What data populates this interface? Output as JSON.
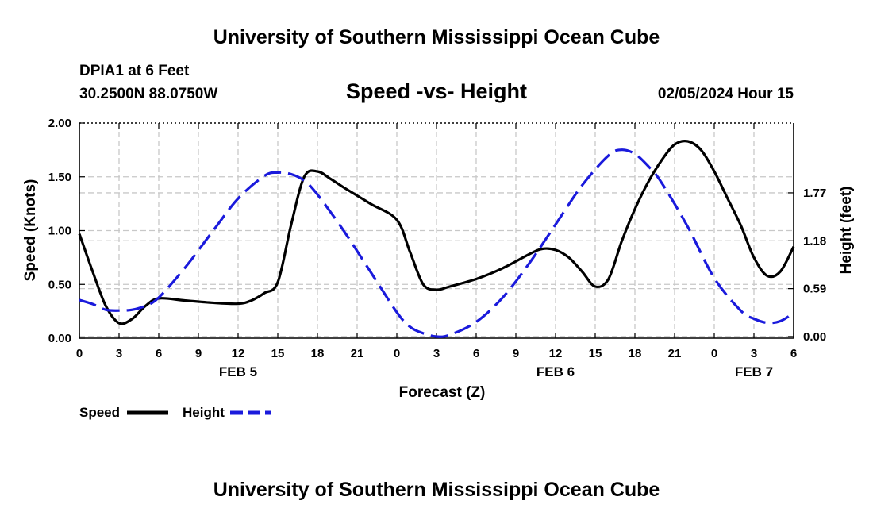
{
  "header": {
    "title": "University of Southern Mississippi Ocean Cube",
    "station": "DPIA1 at 6 Feet",
    "coords": "30.2500N  88.0750W",
    "subtitle": "Speed -vs- Height",
    "datetime": "02/05/2024 Hour 15"
  },
  "footer": {
    "title": "University of Southern Mississippi Ocean Cube"
  },
  "colors": {
    "speed": "#000000",
    "height": "#1a1adc",
    "grid": "#c8c8c8"
  },
  "chart_data": {
    "type": "line",
    "title": "Speed -vs- Height",
    "xlabel": "Forecast (Z)",
    "ylabel": "Speed (Knots)",
    "y2label": "Height (feet)",
    "xlim": [
      0,
      54
    ],
    "ylim": [
      0,
      2.0
    ],
    "y2lim": [
      -0.02,
      2.63
    ],
    "x_ticks": [
      0,
      3,
      6,
      9,
      12,
      15,
      18,
      21,
      24,
      27,
      30,
      33,
      36,
      39,
      42,
      45,
      48,
      51,
      54
    ],
    "x_tick_labels": [
      "0",
      "3",
      "6",
      "9",
      "12",
      "15",
      "18",
      "21",
      "0",
      "3",
      "6",
      "9",
      "12",
      "15",
      "18",
      "21",
      "0",
      "3",
      "6"
    ],
    "day_labels": [
      {
        "label": "FEB 5",
        "x": 12
      },
      {
        "label": "FEB 6",
        "x": 36
      },
      {
        "label": "FEB 7",
        "x": 51
      }
    ],
    "y_ticks": [
      0.0,
      0.5,
      1.0,
      1.5,
      2.0
    ],
    "y_tick_labels": [
      "0.00",
      "0.50",
      "1.00",
      "1.50",
      "2.00"
    ],
    "y2_ticks": [
      0.0,
      0.59,
      1.18,
      1.77
    ],
    "y2_tick_labels": [
      "0.00",
      "0.59",
      "1.18",
      "1.77"
    ],
    "grid": true,
    "legend": [
      {
        "name": "Speed",
        "style": "solid"
      },
      {
        "name": "Height",
        "style": "dashed"
      }
    ],
    "series": [
      {
        "name": "Speed",
        "axis": "left",
        "x": [
          0,
          1,
          2,
          3,
          4,
          5,
          6,
          8,
          10,
          12,
          13,
          14,
          15,
          16,
          17,
          18,
          19,
          20,
          22,
          24,
          25,
          26,
          27,
          28,
          30,
          32,
          34,
          35,
          36,
          37,
          38,
          39,
          40,
          41,
          42,
          43,
          44,
          45,
          46,
          47,
          48,
          49,
          50,
          51,
          52,
          53,
          54
        ],
        "values": [
          0.97,
          0.62,
          0.3,
          0.14,
          0.18,
          0.3,
          0.37,
          0.35,
          0.33,
          0.32,
          0.35,
          0.42,
          0.52,
          1.05,
          1.5,
          1.55,
          1.48,
          1.4,
          1.25,
          1.1,
          0.8,
          0.5,
          0.45,
          0.48,
          0.55,
          0.65,
          0.78,
          0.83,
          0.82,
          0.75,
          0.62,
          0.48,
          0.55,
          0.9,
          1.2,
          1.45,
          1.65,
          1.8,
          1.83,
          1.75,
          1.55,
          1.3,
          1.05,
          0.75,
          0.58,
          0.62,
          0.85
        ]
      },
      {
        "name": "Height",
        "axis": "right",
        "x": [
          0,
          1,
          2,
          3,
          4,
          5,
          6,
          8,
          10,
          12,
          14,
          15,
          16,
          17,
          18,
          20,
          22,
          24,
          25,
          26,
          27,
          28,
          30,
          32,
          34,
          36,
          38,
          40,
          41,
          42,
          43,
          44,
          46,
          48,
          50,
          51,
          52,
          53,
          54
        ],
        "values": [
          0.45,
          0.4,
          0.33,
          0.32,
          0.33,
          0.38,
          0.48,
          0.85,
          1.28,
          1.7,
          1.98,
          2.02,
          2.0,
          1.92,
          1.75,
          1.3,
          0.8,
          0.3,
          0.12,
          0.04,
          0.0,
          0.02,
          0.18,
          0.48,
          0.9,
          1.38,
          1.86,
          2.23,
          2.3,
          2.25,
          2.1,
          1.9,
          1.35,
          0.72,
          0.32,
          0.22,
          0.17,
          0.19,
          0.29
        ]
      }
    ]
  }
}
